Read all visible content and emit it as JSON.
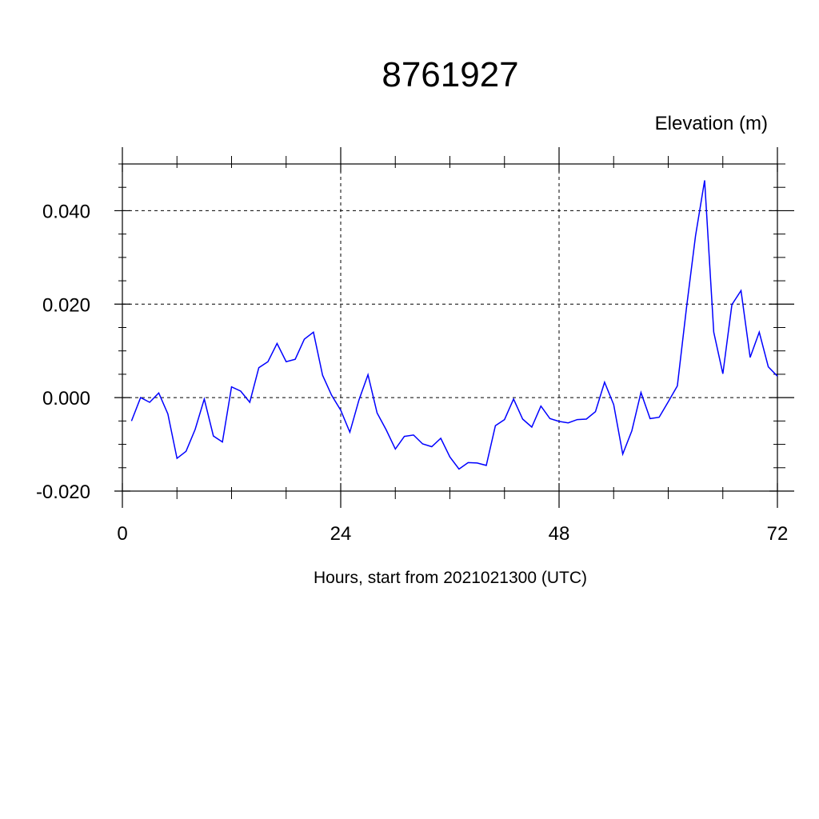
{
  "chart_data": {
    "type": "line",
    "title": "8761927",
    "units_label": "Elevation (m)",
    "xlabel": "Hours, start from 2021021300 (UTC)",
    "ylabel": "",
    "xlim": [
      0,
      72
    ],
    "ylim": [
      -0.02,
      0.05
    ],
    "x_ticks": [
      0,
      24,
      48,
      72
    ],
    "x_tick_labels": [
      "0",
      "24",
      "48",
      "72"
    ],
    "y_ticks": [
      -0.02,
      0.0,
      0.02,
      0.04
    ],
    "y_tick_labels": [
      "-0.020",
      "0.000",
      "0.020",
      "0.040"
    ],
    "grid": "dashed",
    "line_color": "#0000ff",
    "series": [
      {
        "x": [
          1,
          2,
          3,
          4,
          5,
          6,
          7,
          8,
          9,
          10,
          11,
          12,
          13,
          14,
          15,
          16,
          17,
          18,
          19,
          20,
          21,
          22,
          23,
          24,
          25,
          26,
          27,
          28,
          29,
          30,
          31,
          32,
          33,
          34,
          35,
          36,
          37,
          38,
          39,
          40,
          41,
          42,
          43,
          44,
          45,
          46,
          47,
          48,
          49,
          50,
          51,
          52,
          53,
          54,
          55,
          56,
          57,
          58,
          59,
          60,
          61,
          62,
          63,
          64,
          65,
          66,
          67,
          68,
          69,
          70,
          71,
          72
        ],
        "values": [
          -0.005,
          0.0,
          -0.001,
          0.001,
          -0.0035,
          -0.013,
          -0.0115,
          -0.0068,
          -0.0003,
          -0.0082,
          -0.0095,
          0.0023,
          0.0014,
          -0.001,
          0.0064,
          0.0077,
          0.0116,
          0.0077,
          0.0082,
          0.0125,
          0.014,
          0.0048,
          0.0005,
          -0.0027,
          -0.0074,
          -0.0005,
          0.0049,
          -0.0033,
          -0.0069,
          -0.011,
          -0.0083,
          -0.008,
          -0.0099,
          -0.0105,
          -0.0087,
          -0.0127,
          -0.0153,
          -0.0139,
          -0.014,
          -0.0145,
          -0.006,
          -0.0047,
          -0.0003,
          -0.0046,
          -0.0063,
          -0.0018,
          -0.0045,
          -0.0051,
          -0.0054,
          -0.0047,
          -0.0046,
          -0.003,
          0.0033,
          -0.0015,
          -0.0121,
          -0.0071,
          0.0011,
          -0.0045,
          -0.0042,
          -0.0009,
          0.0025,
          0.0192,
          0.0346,
          0.0465,
          0.014,
          0.0051,
          0.0199,
          0.0229,
          0.0086,
          0.014,
          0.0066,
          0.0046
        ]
      }
    ]
  }
}
